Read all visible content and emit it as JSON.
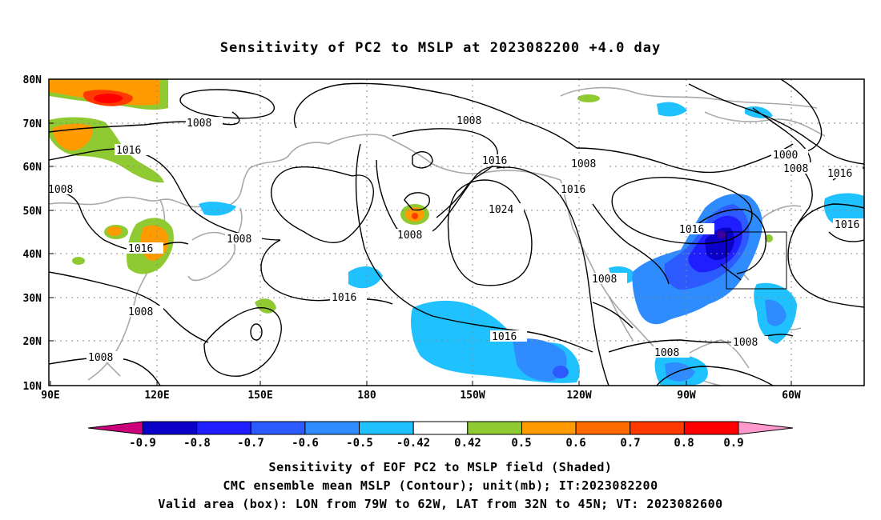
{
  "title": "Sensitivity of PC2 to MSLP at 2023082200 +4.0 day",
  "map": {
    "lon_ticks": [
      "90E",
      "120E",
      "150E",
      "180",
      "150W",
      "120W",
      "90W",
      "60W"
    ],
    "lat_ticks": [
      "80N",
      "70N",
      "60N",
      "50N",
      "40N",
      "30N",
      "20N",
      "10N"
    ],
    "contour_labels": [
      "1008",
      "1008",
      "1016",
      "1008",
      "1016",
      "1008",
      "1008",
      "1008",
      "1016",
      "1024",
      "1008",
      "1016",
      "1016",
      "1016",
      "1008",
      "1000",
      "1008",
      "1016",
      "1016",
      "1008",
      "1008",
      "1016",
      "1008"
    ],
    "valid_box": {
      "lon_from": "79W",
      "lon_to": "62W",
      "lat_from": "32N",
      "lat_to": "45N"
    }
  },
  "colorbar": {
    "labels": [
      "-0.9",
      "-0.8",
      "-0.7",
      "-0.6",
      "-0.5",
      "-0.42",
      "0.42",
      "0.5",
      "0.6",
      "0.7",
      "0.8",
      "0.9"
    ],
    "colors": [
      "#0a00c8",
      "#1e1eff",
      "#2d5aff",
      "#2f8cff",
      "#1fc1ff",
      "#ffffff",
      "#8fca32",
      "#ff9b00",
      "#ff6a00",
      "#ff3a00",
      "#ff0000"
    ],
    "under_color": "#cc007a",
    "over_color": "#ff99cc"
  },
  "captions": {
    "line1": "Sensitivity of EOF PC2 to MSLP field (Shaded)",
    "line2": "CMC ensemble mean MSLP (Contour); unit(mb); IT:2023082200",
    "line3": "Valid area (box): LON from 79W to 62W, LAT from 32N to 45N; VT: 2023082600"
  }
}
